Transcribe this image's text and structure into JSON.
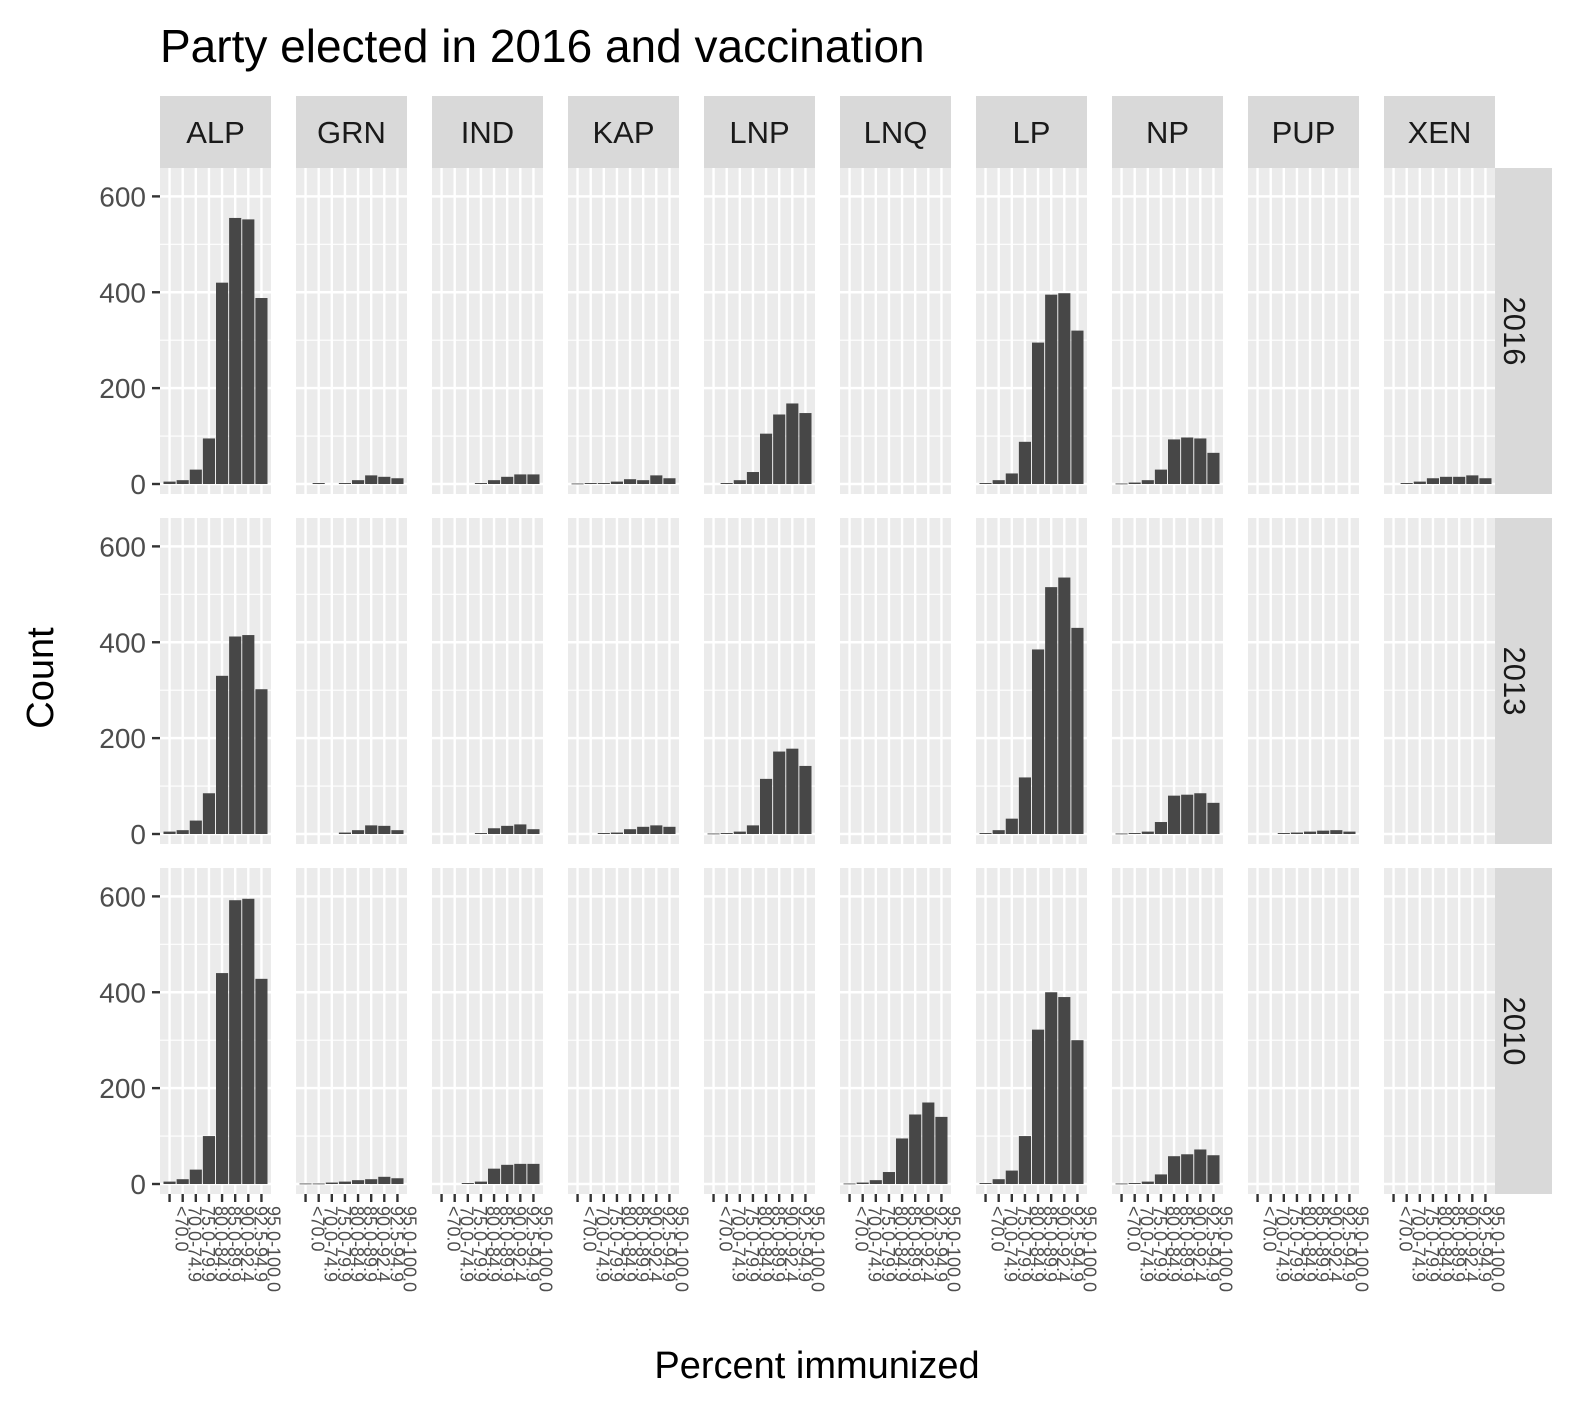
{
  "chart_data": {
    "type": "bar",
    "title": "Party elected in 2016 and vaccination",
    "xlabel": "Percent immunized",
    "ylabel": "Count",
    "ylim": [
      0,
      630
    ],
    "yticks": [
      0,
      200,
      400,
      600
    ],
    "grid": true,
    "categories": [
      "<70.0",
      "70.0-74.9",
      "75.0-79.9",
      "80.0-84.9",
      "85.0-89.9",
      "90.0-92.4",
      "92.5-94.9",
      "95.0-100.0"
    ],
    "columns": [
      "ALP",
      "GRN",
      "IND",
      "KAP",
      "LNP",
      "LNQ",
      "LP",
      "NP",
      "PUP",
      "XEN"
    ],
    "rows": [
      "2016",
      "2013",
      "2010"
    ],
    "panels": [
      {
        "row": "2016",
        "column": "ALP",
        "values": [
          5,
          8,
          30,
          95,
          420,
          555,
          552,
          388
        ]
      },
      {
        "row": "2016",
        "column": "GRN",
        "values": [
          0,
          2,
          0,
          2,
          8,
          18,
          15,
          12
        ]
      },
      {
        "row": "2016",
        "column": "IND",
        "values": [
          0,
          0,
          0,
          2,
          8,
          15,
          20,
          20
        ]
      },
      {
        "row": "2016",
        "column": "KAP",
        "values": [
          1,
          2,
          2,
          5,
          10,
          8,
          18,
          12
        ]
      },
      {
        "row": "2016",
        "column": "LNP",
        "values": [
          0,
          2,
          8,
          25,
          105,
          145,
          168,
          148
        ]
      },
      {
        "row": "2016",
        "column": "LNQ",
        "values": [
          0,
          0,
          0,
          0,
          0,
          0,
          0,
          0
        ]
      },
      {
        "row": "2016",
        "column": "LP",
        "values": [
          2,
          8,
          22,
          88,
          295,
          395,
          398,
          320
        ]
      },
      {
        "row": "2016",
        "column": "NP",
        "values": [
          1,
          3,
          8,
          30,
          93,
          97,
          95,
          65
        ]
      },
      {
        "row": "2016",
        "column": "PUP",
        "values": [
          0,
          0,
          0,
          0,
          0,
          0,
          0,
          0
        ]
      },
      {
        "row": "2016",
        "column": "XEN",
        "values": [
          0,
          2,
          5,
          12,
          15,
          15,
          18,
          12
        ]
      },
      {
        "row": "2013",
        "column": "ALP",
        "values": [
          5,
          8,
          28,
          85,
          330,
          412,
          415,
          302
        ]
      },
      {
        "row": "2013",
        "column": "GRN",
        "values": [
          0,
          0,
          0,
          3,
          8,
          18,
          17,
          8
        ]
      },
      {
        "row": "2013",
        "column": "IND",
        "values": [
          0,
          0,
          0,
          2,
          12,
          17,
          20,
          10
        ]
      },
      {
        "row": "2013",
        "column": "KAP",
        "values": [
          0,
          0,
          2,
          3,
          10,
          15,
          18,
          15
        ]
      },
      {
        "row": "2013",
        "column": "LNP",
        "values": [
          1,
          2,
          5,
          18,
          115,
          172,
          178,
          142
        ]
      },
      {
        "row": "2013",
        "column": "LNQ",
        "values": [
          0,
          0,
          0,
          0,
          0,
          0,
          0,
          0
        ]
      },
      {
        "row": "2013",
        "column": "LP",
        "values": [
          2,
          8,
          32,
          118,
          385,
          515,
          535,
          430
        ]
      },
      {
        "row": "2013",
        "column": "NP",
        "values": [
          1,
          2,
          5,
          25,
          80,
          82,
          85,
          65
        ]
      },
      {
        "row": "2013",
        "column": "PUP",
        "values": [
          0,
          0,
          2,
          3,
          5,
          7,
          8,
          5
        ]
      },
      {
        "row": "2013",
        "column": "XEN",
        "values": [
          0,
          0,
          0,
          0,
          0,
          0,
          0,
          0
        ]
      },
      {
        "row": "2010",
        "column": "ALP",
        "values": [
          5,
          10,
          30,
          100,
          440,
          592,
          595,
          428
        ]
      },
      {
        "row": "2010",
        "column": "GRN",
        "values": [
          1,
          1,
          3,
          5,
          8,
          10,
          15,
          12
        ]
      },
      {
        "row": "2010",
        "column": "IND",
        "values": [
          0,
          0,
          2,
          5,
          32,
          40,
          42,
          42
        ]
      },
      {
        "row": "2010",
        "column": "KAP",
        "values": [
          0,
          0,
          0,
          0,
          0,
          0,
          0,
          0
        ]
      },
      {
        "row": "2010",
        "column": "LNP",
        "values": [
          0,
          0,
          0,
          0,
          0,
          0,
          0,
          0
        ]
      },
      {
        "row": "2010",
        "column": "LNQ",
        "values": [
          1,
          3,
          8,
          25,
          95,
          145,
          170,
          140
        ]
      },
      {
        "row": "2010",
        "column": "LP",
        "values": [
          2,
          10,
          28,
          100,
          322,
          400,
          390,
          300
        ]
      },
      {
        "row": "2010",
        "column": "NP",
        "values": [
          1,
          2,
          5,
          20,
          58,
          62,
          72,
          60
        ]
      },
      {
        "row": "2010",
        "column": "PUP",
        "values": [
          0,
          0,
          0,
          0,
          0,
          0,
          0,
          0
        ]
      },
      {
        "row": "2010",
        "column": "XEN",
        "values": [
          0,
          0,
          0,
          0,
          0,
          0,
          0,
          0
        ]
      }
    ],
    "colors": {
      "bar": "#474747",
      "panel_background": "#ebebeb",
      "grid": "#ffffff",
      "strip": "#d9d9d9",
      "tick": "#333333"
    }
  }
}
